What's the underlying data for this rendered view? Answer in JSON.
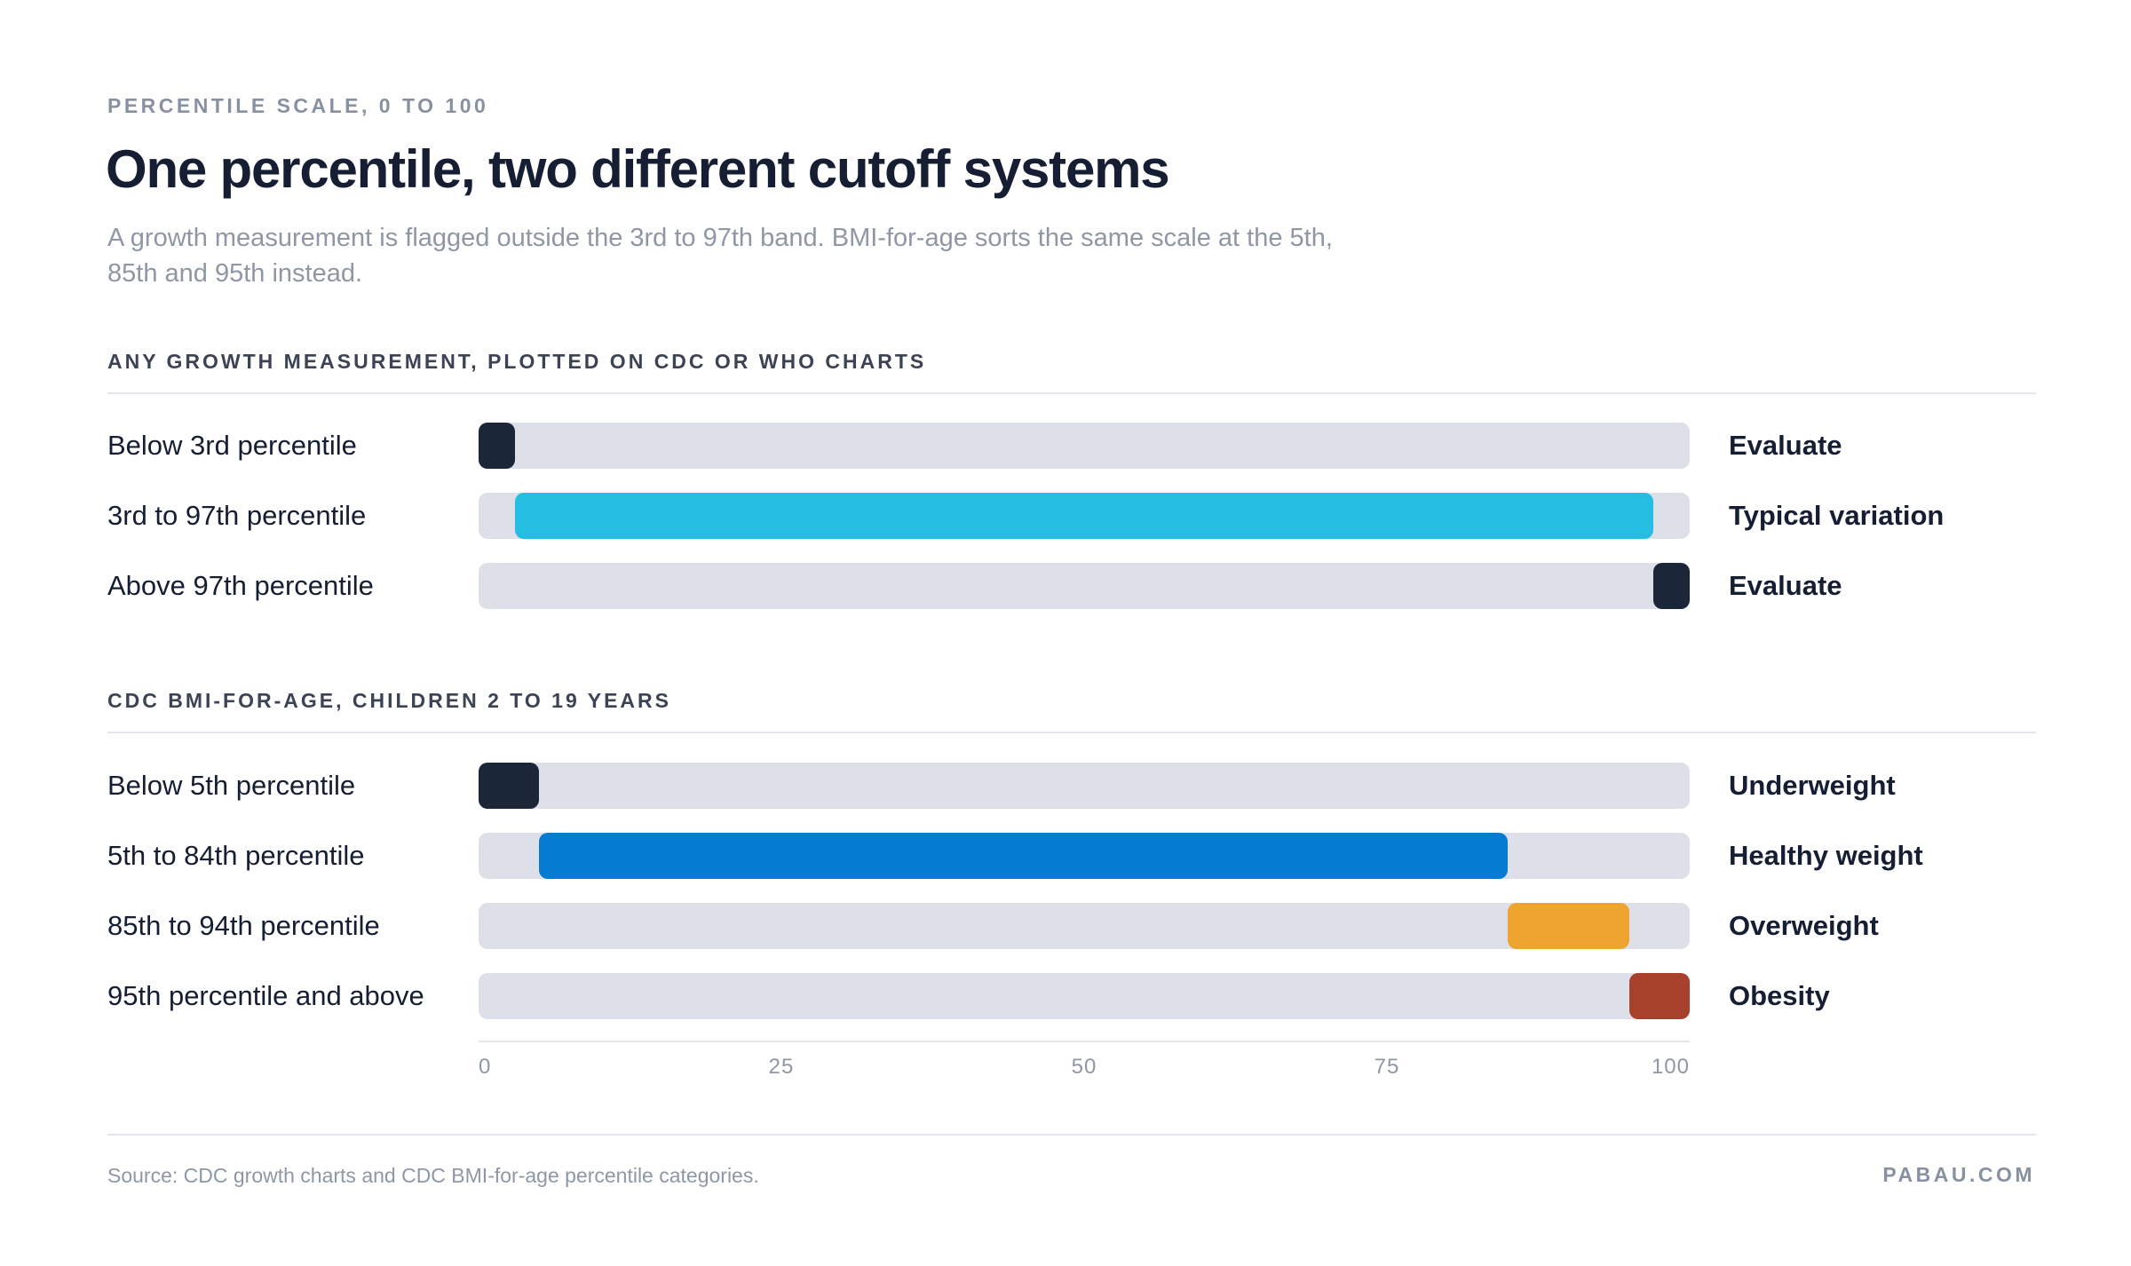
{
  "header": {
    "eyebrow": "PERCENTILE SCALE, 0 TO 100",
    "title": "One percentile, two different cutoff systems",
    "subtitle": "A growth measurement is flagged outside the 3rd to 97th band. BMI-for-age sorts the same scale at the 5th, 85th and 95th instead."
  },
  "chart_data": {
    "type": "bar",
    "subtype": "horizontal range bands",
    "xlim": [
      0,
      100
    ],
    "x_ticks": [
      "0",
      "25",
      "50",
      "75",
      "100"
    ],
    "groups": [
      {
        "title": "ANY GROWTH MEASUREMENT, PLOTTED ON CDC OR WHO CHARTS",
        "rows": [
          {
            "label": "Below 3rd percentile",
            "start": 0,
            "end": 3,
            "outcome": "Evaluate",
            "color": "#1b2639"
          },
          {
            "label": "3rd to 97th percentile",
            "start": 3,
            "end": 97,
            "outcome": "Typical variation",
            "color": "#26bde2"
          },
          {
            "label": "Above 97th percentile",
            "start": 97,
            "end": 100,
            "outcome": "Evaluate",
            "color": "#1b2639"
          }
        ]
      },
      {
        "title": "CDC BMI-FOR-AGE, CHILDREN 2 TO 19 YEARS",
        "rows": [
          {
            "label": "Below 5th percentile",
            "start": 0,
            "end": 5,
            "outcome": "Underweight",
            "color": "#1b2639"
          },
          {
            "label": "5th to 84th percentile",
            "start": 5,
            "end": 85,
            "outcome": "Healthy weight",
            "color": "#067bd2"
          },
          {
            "label": "85th to 94th percentile",
            "start": 85,
            "end": 95,
            "outcome": "Overweight",
            "color": "#eea52f"
          },
          {
            "label": "95th percentile and above",
            "start": 95,
            "end": 100,
            "outcome": "Obesity",
            "color": "#a8412b"
          }
        ]
      }
    ],
    "track_color": "#dde0e9"
  },
  "footer": {
    "source": "Source: CDC growth charts and CDC BMI-for-age percentile categories.",
    "brand": "PABAU.COM"
  }
}
